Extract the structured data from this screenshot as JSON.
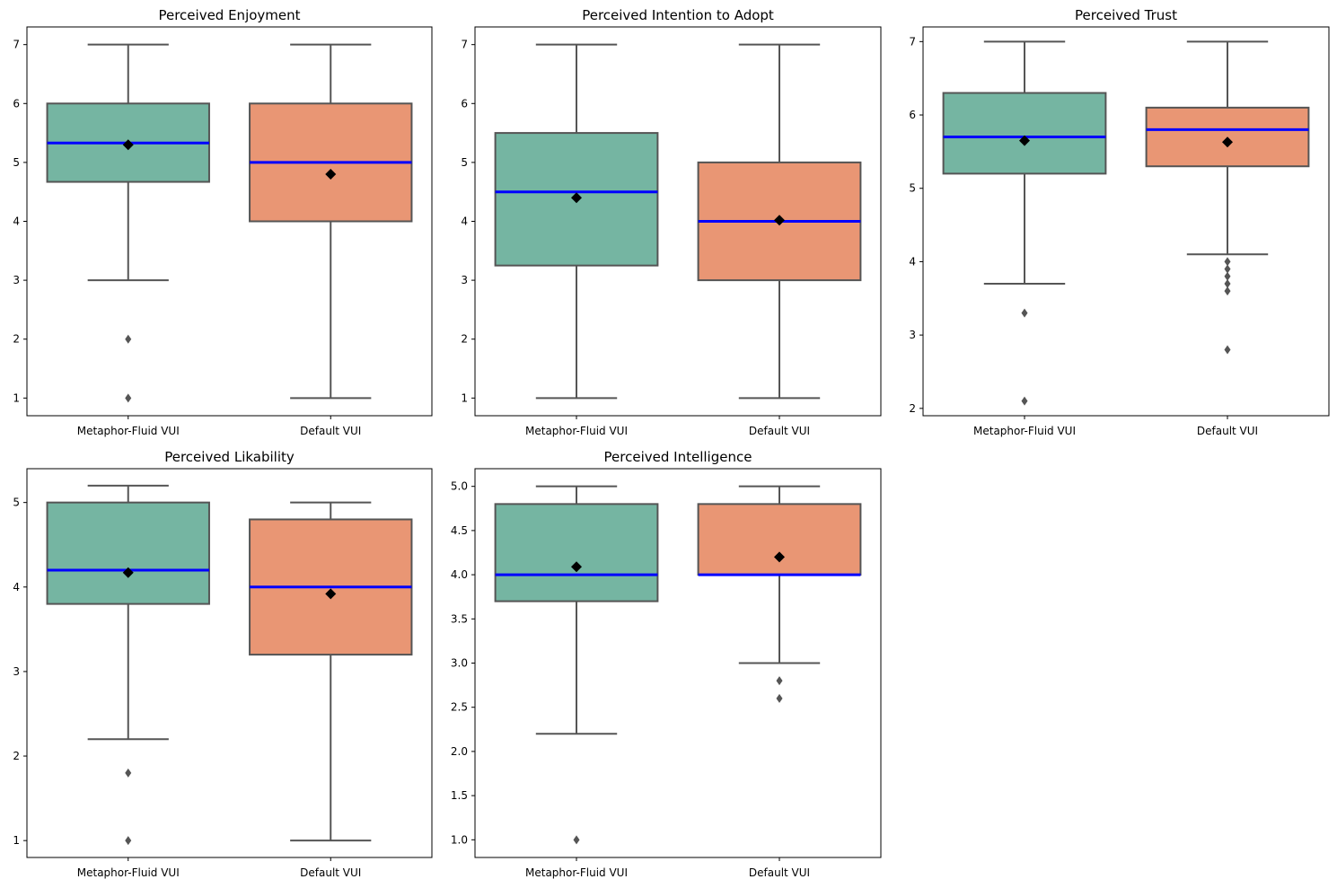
{
  "chart_data": [
    {
      "type": "box",
      "title": "Perceived Enjoyment",
      "categories": [
        "Metaphor-Fluid VUI",
        "Default VUI"
      ],
      "ylim": [
        0.7,
        7.3
      ],
      "yticks": [
        1,
        2,
        3,
        4,
        5,
        6,
        7
      ],
      "boxes": [
        {
          "category": "Metaphor-Fluid VUI",
          "whisker_low": 3.0,
          "q1": 4.67,
          "median": 5.33,
          "q3": 6.0,
          "whisker_high": 7.0,
          "mean": 5.3,
          "outliers": [
            2.0,
            1.0
          ]
        },
        {
          "category": "Default VUI",
          "whisker_low": 1.0,
          "q1": 4.0,
          "median": 5.0,
          "q3": 6.0,
          "whisker_high": 7.0,
          "mean": 4.8,
          "outliers": []
        }
      ]
    },
    {
      "type": "box",
      "title": "Perceived Intention to Adopt",
      "categories": [
        "Metaphor-Fluid VUI",
        "Default VUI"
      ],
      "ylim": [
        0.7,
        7.3
      ],
      "yticks": [
        1,
        2,
        3,
        4,
        5,
        6,
        7
      ],
      "boxes": [
        {
          "category": "Metaphor-Fluid VUI",
          "whisker_low": 1.0,
          "q1": 3.25,
          "median": 4.5,
          "q3": 5.5,
          "whisker_high": 7.0,
          "mean": 4.4,
          "outliers": []
        },
        {
          "category": "Default VUI",
          "whisker_low": 1.0,
          "q1": 3.0,
          "median": 4.0,
          "q3": 5.0,
          "whisker_high": 7.0,
          "mean": 4.02,
          "outliers": []
        }
      ]
    },
    {
      "type": "box",
      "title": "Perceived Trust",
      "categories": [
        "Metaphor-Fluid VUI",
        "Default VUI"
      ],
      "ylim": [
        1.9,
        7.2
      ],
      "yticks": [
        2,
        3,
        4,
        5,
        6,
        7
      ],
      "boxes": [
        {
          "category": "Metaphor-Fluid VUI",
          "whisker_low": 3.7,
          "q1": 5.2,
          "median": 5.7,
          "q3": 6.3,
          "whisker_high": 7.0,
          "mean": 5.65,
          "outliers": [
            3.3,
            2.1
          ]
        },
        {
          "category": "Default VUI",
          "whisker_low": 4.1,
          "q1": 5.3,
          "median": 5.8,
          "q3": 6.1,
          "whisker_high": 7.0,
          "mean": 5.63,
          "outliers": [
            4.0,
            3.9,
            3.8,
            3.7,
            3.6,
            2.8
          ]
        }
      ]
    },
    {
      "type": "box",
      "title": "Perceived Likability",
      "categories": [
        "Metaphor-Fluid VUI",
        "Default VUI"
      ],
      "ylim": [
        0.8,
        5.4
      ],
      "yticks": [
        1,
        2,
        3,
        4,
        5
      ],
      "boxes": [
        {
          "category": "Metaphor-Fluid VUI",
          "whisker_low": 2.2,
          "q1": 3.8,
          "median": 4.2,
          "q3": 5.0,
          "whisker_high": 5.2,
          "mean": 4.17,
          "outliers": [
            1.8,
            1.0
          ]
        },
        {
          "category": "Default VUI",
          "whisker_low": 1.0,
          "q1": 3.2,
          "median": 4.0,
          "q3": 4.8,
          "whisker_high": 5.0,
          "mean": 3.92,
          "outliers": []
        }
      ]
    },
    {
      "type": "box",
      "title": "Perceived Intelligence",
      "categories": [
        "Metaphor-Fluid VUI",
        "Default VUI"
      ],
      "ylim": [
        0.8,
        5.2
      ],
      "yticks": [
        1.0,
        1.5,
        2.0,
        2.5,
        3.0,
        3.5,
        4.0,
        4.5,
        5.0
      ],
      "boxes": [
        {
          "category": "Metaphor-Fluid VUI",
          "whisker_low": 2.2,
          "q1": 3.7,
          "median": 4.0,
          "q3": 4.8,
          "whisker_high": 5.0,
          "mean": 4.09,
          "outliers": [
            1.0
          ]
        },
        {
          "category": "Default VUI",
          "whisker_low": 3.0,
          "q1": 4.0,
          "median": 4.0,
          "q3": 4.8,
          "whisker_high": 5.0,
          "mean": 4.2,
          "outliers": [
            2.8,
            2.6
          ]
        }
      ]
    }
  ],
  "colors": {
    "Metaphor-Fluid VUI": "#75b5a2",
    "Default VUI": "#e99674",
    "box_edge": "#555555",
    "median": "#0000ff",
    "mean": "#000000",
    "outlier": "#555555"
  }
}
